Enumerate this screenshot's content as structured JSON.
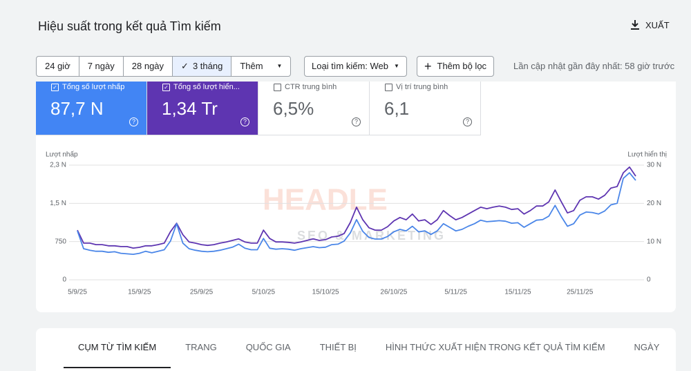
{
  "header": {
    "title": "Hiệu suất trong kết quả Tìm kiếm",
    "export": "XUẤT"
  },
  "filters": {
    "date_ranges": [
      "24 giờ",
      "7 ngày",
      "28 ngày",
      "3 tháng",
      "Thêm"
    ],
    "search_type": "Loại tìm kiếm: Web",
    "add_filter": "Thêm bộ lọc",
    "last_updated": "Lần cập nhật gần đây nhất: 58 giờ trước"
  },
  "metrics": [
    {
      "label": "Tổng số lượt nhấp",
      "value": "87,7 N"
    },
    {
      "label": "Tổng số lượt hiển...",
      "value": "1,34 Tr"
    },
    {
      "label": "CTR trung bình",
      "value": "6,5%"
    },
    {
      "label": "Vị trí trung bình",
      "value": "6,1"
    }
  ],
  "watermark": [
    "HEADLE",
    "SEO & MARKETING"
  ],
  "chart_data": {
    "type": "line",
    "y_label": "Lượt nhấp",
    "y2_label": "Lượt hiển thị",
    "grid": true,
    "categories": [
      "5/9/25",
      null,
      null,
      null,
      null,
      null,
      null,
      null,
      null,
      null,
      "15/9/25",
      null,
      null,
      null,
      null,
      null,
      null,
      null,
      null,
      null,
      "25/9/25",
      null,
      null,
      null,
      null,
      null,
      null,
      null,
      null,
      null,
      "5/10/25",
      null,
      null,
      null,
      null,
      null,
      null,
      null,
      null,
      null,
      "15/10/25",
      null,
      null,
      null,
      null,
      null,
      null,
      null,
      null,
      null,
      null,
      "26/10/25",
      null,
      null,
      null,
      null,
      null,
      null,
      null,
      null,
      null,
      "5/11/25",
      null,
      null,
      null,
      null,
      null,
      null,
      null,
      null,
      null,
      "15/11/25",
      null,
      null,
      null,
      null,
      null,
      null,
      null,
      null,
      null,
      "25/11/25",
      null,
      null,
      null,
      null,
      null,
      null,
      null,
      null,
      null
    ],
    "ylim": [
      0,
      2250
    ],
    "yticks": [
      0,
      750,
      {
        "value": 1500,
        "label": "1,5 N"
      },
      {
        "value": 2250,
        "label": "2,3 N"
      }
    ],
    "y2lim": [
      0,
      30000
    ],
    "y2ticks": [
      0,
      {
        "value": 10000,
        "label": "10 N"
      },
      {
        "value": 20000,
        "label": "20 N"
      },
      {
        "value": 30000,
        "label": "30 N"
      }
    ],
    "series": [
      {
        "color": "#5e35b1",
        "axis": "y2",
        "values": [
          13000,
          9600,
          9600,
          9200,
          9200,
          8900,
          8900,
          8700,
          8700,
          8300,
          8500,
          8900,
          8900,
          9200,
          9600,
          12600,
          14800,
          11800,
          9900,
          9600,
          9200,
          9000,
          9200,
          9600,
          9900,
          10300,
          10700,
          9900,
          9600,
          9600,
          13000,
          10800,
          9900,
          9900,
          9800,
          9600,
          9900,
          10300,
          10700,
          10300,
          10500,
          11200,
          11400,
          12100,
          15000,
          19000,
          15700,
          13600,
          13000,
          13000,
          13900,
          15400,
          16300,
          15700,
          17200,
          15400,
          15700,
          14500,
          15700,
          18100,
          16800,
          15700,
          16300,
          17200,
          18100,
          19000,
          18600,
          19000,
          19300,
          19000,
          18400,
          18600,
          17200,
          18100,
          19300,
          19300,
          20400,
          23500,
          20400,
          17500,
          18100,
          20800,
          21700,
          21700,
          21100,
          22100,
          24000,
          24400,
          28000,
          29500,
          27100
        ]
      },
      {
        "color": "#4a86e8",
        "values": [
          960,
          610,
          580,
          560,
          560,
          540,
          550,
          520,
          510,
          500,
          520,
          560,
          530,
          560,
          590,
          760,
          1100,
          720,
          610,
          580,
          560,
          550,
          560,
          580,
          610,
          640,
          700,
          620,
          590,
          590,
          810,
          620,
          600,
          610,
          600,
          580,
          610,
          630,
          650,
          630,
          640,
          690,
          700,
          760,
          920,
          1180,
          950,
          830,
          800,
          800,
          850,
          940,
          990,
          960,
          1050,
          940,
          960,
          890,
          960,
          1100,
          1030,
          960,
          990,
          1050,
          1100,
          1170,
          1140,
          1150,
          1160,
          1150,
          1110,
          1120,
          1030,
          1100,
          1170,
          1180,
          1250,
          1460,
          1240,
          1050,
          1100,
          1270,
          1330,
          1320,
          1290,
          1350,
          1470,
          1500,
          1990,
          2100,
          1950
        ]
      }
    ]
  },
  "tabs": [
    "CỤM TỪ TÌM KIẾM",
    "TRANG",
    "QUỐC GIA",
    "THIẾT BỊ",
    "HÌNH THỨC XUẤT HIỆN TRONG KẾT QUẢ TÌM KIẾM",
    "NGÀY"
  ]
}
